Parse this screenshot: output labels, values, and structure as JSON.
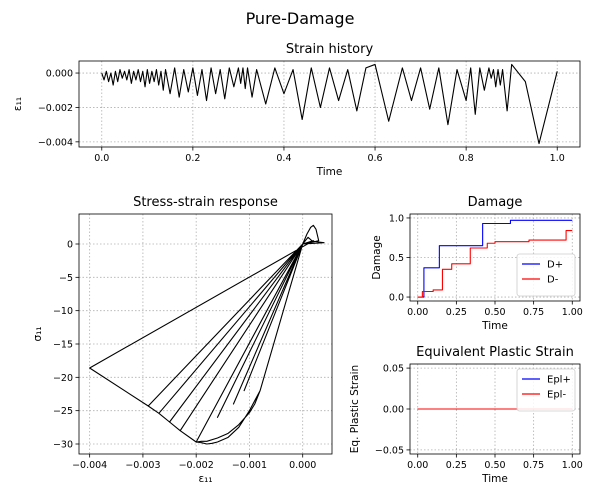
{
  "figure_title": "Pure-Damage",
  "chart_data": [
    {
      "id": "strain",
      "type": "line",
      "title": "Strain history",
      "xlabel": "Time",
      "ylabel": "ε₁₁",
      "xlim": [
        -0.05,
        1.05
      ],
      "ylim": [
        -0.0043,
        0.0007
      ],
      "xticks": [
        0.0,
        0.2,
        0.4,
        0.6,
        0.8,
        1.0
      ],
      "xtick_labels": [
        "0.0",
        "0.2",
        "0.4",
        "0.6",
        "0.8",
        "1.0"
      ],
      "yticks": [
        -0.004,
        -0.002,
        0.0
      ],
      "ytick_labels": [
        "−0.004",
        "−0.002",
        "0.000"
      ],
      "grid": true,
      "series": [
        {
          "color": "#000000",
          "x": [
            0.0,
            0.005,
            0.01,
            0.015,
            0.02,
            0.025,
            0.03,
            0.035,
            0.04,
            0.045,
            0.05,
            0.055,
            0.06,
            0.065,
            0.07,
            0.075,
            0.08,
            0.085,
            0.09,
            0.095,
            0.1,
            0.105,
            0.11,
            0.115,
            0.12,
            0.125,
            0.13,
            0.135,
            0.14,
            0.15,
            0.16,
            0.17,
            0.18,
            0.19,
            0.2,
            0.21,
            0.22,
            0.23,
            0.24,
            0.25,
            0.26,
            0.27,
            0.28,
            0.29,
            0.3,
            0.305,
            0.31,
            0.315,
            0.32,
            0.33,
            0.34,
            0.36,
            0.38,
            0.4,
            0.42,
            0.44,
            0.46,
            0.48,
            0.5,
            0.52,
            0.54,
            0.56,
            0.58,
            0.6,
            0.63,
            0.66,
            0.68,
            0.7,
            0.72,
            0.74,
            0.76,
            0.78,
            0.8,
            0.81,
            0.82,
            0.83,
            0.84,
            0.85,
            0.855,
            0.86,
            0.865,
            0.87,
            0.875,
            0.88,
            0.89,
            0.9,
            0.93,
            0.96,
            1.0
          ],
          "y": [
            0.0,
            -0.0004,
            0.0001,
            -0.0005,
            0.0,
            -0.0007,
            0.0001,
            -0.0005,
            0.0002,
            -0.0003,
            0.0001,
            -0.0004,
            0.0002,
            -0.0006,
            0.0001,
            -0.0004,
            0.0002,
            -0.0005,
            0.0001,
            -0.0008,
            0.0002,
            -0.0006,
            0.0001,
            -0.0005,
            0.0002,
            -0.0007,
            0.0001,
            -0.001,
            0.0002,
            -0.0012,
            0.0003,
            -0.0014,
            0.0002,
            -0.0011,
            0.0003,
            -0.0013,
            0.0002,
            -0.0016,
            0.0003,
            -0.0012,
            0.0002,
            -0.0015,
            0.0003,
            -0.0008,
            0.0003,
            -0.0006,
            0.0003,
            -0.0009,
            0.0003,
            -0.0014,
            0.0002,
            -0.0018,
            0.0003,
            -0.0012,
            0.0002,
            -0.0027,
            0.0003,
            -0.002,
            0.0003,
            -0.0016,
            0.0002,
            -0.0022,
            0.0003,
            0.0005,
            -0.0028,
            0.0003,
            -0.0016,
            0.0003,
            -0.0021,
            0.0003,
            -0.003,
            0.0002,
            -0.0016,
            0.0003,
            -0.0024,
            0.0003,
            -0.001,
            0.0003,
            -0.0003,
            0.0002,
            -0.0008,
            0.0002,
            -0.0007,
            0.0002,
            -0.0022,
            0.0005,
            -0.0005,
            -0.0041,
            0.0001
          ]
        }
      ]
    },
    {
      "id": "stress",
      "type": "line",
      "title": "Stress-strain response",
      "xlabel": "ε₁₁",
      "ylabel": "σ₁₁",
      "xlim": [
        -0.0042,
        0.00055
      ],
      "ylim": [
        -31.5,
        4.5
      ],
      "xticks": [
        -0.004,
        -0.003,
        -0.002,
        -0.001,
        0.0
      ],
      "xtick_labels": [
        "−0.004",
        "−0.003",
        "−0.002",
        "−0.001",
        "0.000"
      ],
      "yticks": [
        -30,
        -25,
        -20,
        -15,
        -10,
        -5,
        0
      ],
      "ytick_labels": [
        "−30",
        "−25",
        "−20",
        "−15",
        "−10",
        "−5",
        "0"
      ],
      "grid": true,
      "series": [
        {
          "color": "#000000",
          "x": [
            0.0,
            8e-05,
            0.00015,
            0.0002,
            0.00025,
            0.0003,
            0.0002,
            0.0001,
            0.0,
            0.0002,
            0.0003,
            0.0004,
            0.0,
            -0.0008,
            -0.001,
            -0.0012,
            -0.0014,
            -0.0016,
            -0.0017,
            -0.0018,
            -0.0019,
            -0.002,
            -0.0019,
            -0.0018,
            -0.0016,
            -0.0014,
            -0.0012,
            -0.001,
            -0.0009,
            -0.0008,
            0.0,
            -0.002,
            -0.0023,
            -0.0025,
            -0.0027,
            -0.0029,
            -0.004,
            0.0002,
            0.0,
            -0.0029,
            0.0,
            -0.0027,
            0.0,
            -0.0025,
            0.0,
            -0.0023,
            0.0,
            -0.0016,
            0.0,
            -0.0013,
            0.0,
            -0.0011,
            0.0,
            -0.0008,
            0.0,
            0.0002
          ],
          "y": [
            0.0,
            1.5,
            2.5,
            2.8,
            2.2,
            0.5,
            0.3,
            1.0,
            0.0,
            0.4,
            0.3,
            0.2,
            0.0,
            -22.0,
            -25.0,
            -27.5,
            -29.0,
            -29.7,
            -29.9,
            -30.0,
            -29.8,
            -29.7,
            -29.6,
            -29.6,
            -29.1,
            -28.4,
            -27.1,
            -25.3,
            -24.0,
            -22.0,
            0.0,
            -29.7,
            -28.0,
            -26.7,
            -25.4,
            -24.3,
            -18.6,
            0.5,
            0.0,
            -24.3,
            0.0,
            -25.4,
            0.0,
            -26.7,
            0.0,
            -28.0,
            0.0,
            -26.0,
            0.0,
            -24.0,
            0.0,
            -22.0,
            0.0,
            -22.0,
            0.0,
            0.3
          ]
        }
      ]
    },
    {
      "id": "damage",
      "type": "line",
      "title": "Damage",
      "xlabel": "Time",
      "ylabel": "Damage",
      "xlim": [
        -0.05,
        1.05
      ],
      "ylim": [
        -0.05,
        1.05
      ],
      "xticks": [
        0.0,
        0.25,
        0.5,
        0.75,
        1.0
      ],
      "xtick_labels": [
        "0.00",
        "0.25",
        "0.50",
        "0.75",
        "1.00"
      ],
      "yticks": [
        0.0,
        0.5,
        1.0
      ],
      "ytick_labels": [
        "0.0",
        "0.5",
        "1.0"
      ],
      "grid": true,
      "legend_position": "lower right",
      "series": [
        {
          "name": "D+",
          "color": "#0000ff",
          "x": [
            0.0,
            0.04,
            0.04,
            0.14,
            0.14,
            0.42,
            0.42,
            0.6,
            0.6,
            1.0
          ],
          "y": [
            0.0,
            0.0,
            0.37,
            0.37,
            0.65,
            0.65,
            0.93,
            0.93,
            0.97,
            0.97
          ]
        },
        {
          "name": "D-",
          "color": "#ff0000",
          "x": [
            0.0,
            0.03,
            0.03,
            0.1,
            0.1,
            0.16,
            0.16,
            0.22,
            0.22,
            0.34,
            0.34,
            0.45,
            0.45,
            0.5,
            0.5,
            0.72,
            0.72,
            0.96,
            0.96,
            1.0
          ],
          "y": [
            0.0,
            0.0,
            0.07,
            0.07,
            0.09,
            0.09,
            0.35,
            0.35,
            0.42,
            0.42,
            0.62,
            0.62,
            0.68,
            0.68,
            0.7,
            0.7,
            0.72,
            0.72,
            0.84,
            0.84
          ]
        }
      ]
    },
    {
      "id": "plastic",
      "type": "line",
      "title": "Equivalent Plastic Strain",
      "xlabel": "Time",
      "ylabel": "Eq. Plastic Strain",
      "xlim": [
        -0.05,
        1.05
      ],
      "ylim": [
        -0.055,
        0.055
      ],
      "xticks": [
        0.0,
        0.25,
        0.5,
        0.75,
        1.0
      ],
      "xtick_labels": [
        "0.00",
        "0.25",
        "0.50",
        "0.75",
        "1.00"
      ],
      "yticks": [
        -0.05,
        0.0,
        0.05
      ],
      "ytick_labels": [
        "−0.05",
        "0.00",
        "0.05"
      ],
      "grid": true,
      "legend_position": "upper right",
      "series": [
        {
          "name": "Epl+",
          "color": "#0000ff",
          "x": [
            0.0,
            1.0
          ],
          "y": [
            0.0,
            0.0
          ]
        },
        {
          "name": "Epl-",
          "color": "#ff0000",
          "x": [
            0.0,
            1.0
          ],
          "y": [
            0.0,
            0.0
          ]
        }
      ]
    }
  ]
}
